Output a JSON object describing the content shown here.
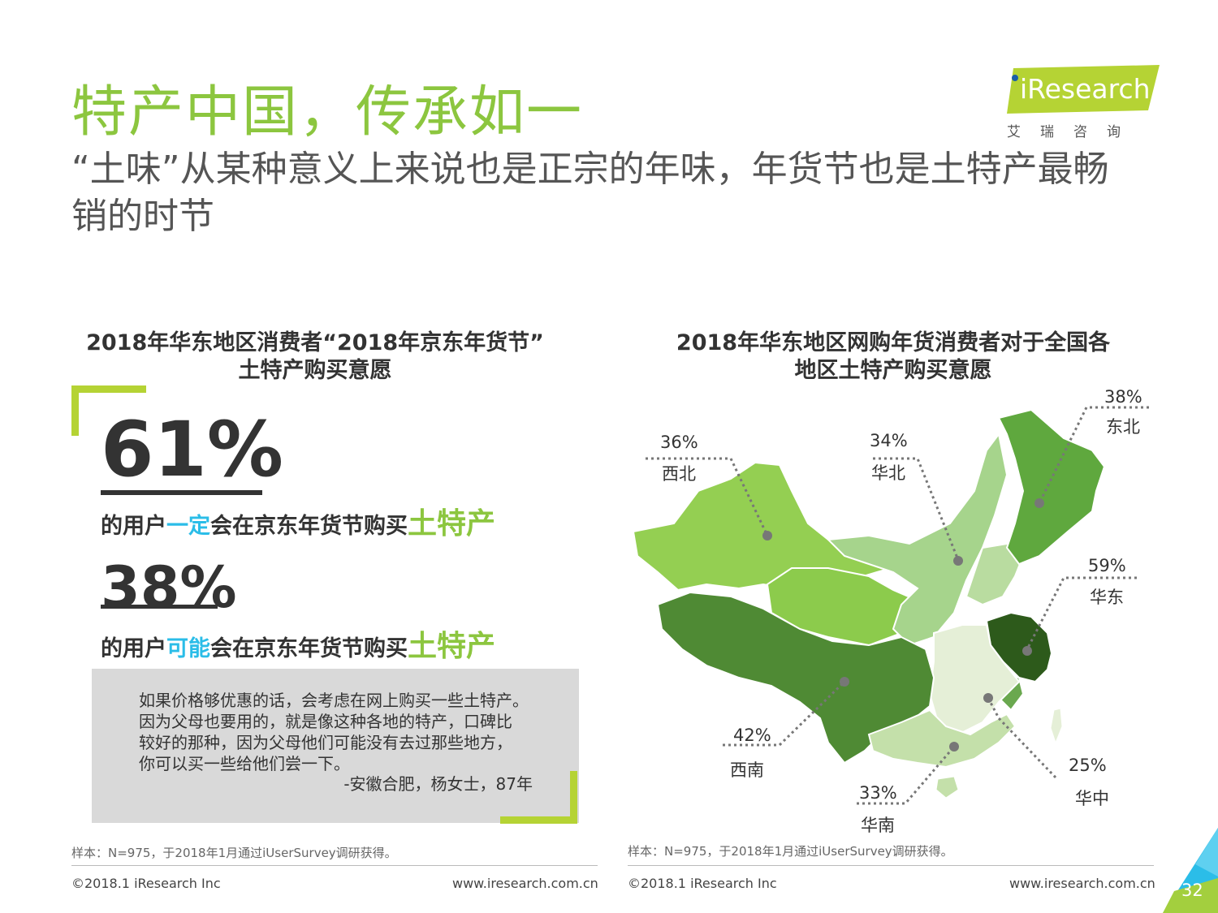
{
  "header": {
    "title": "特产中国，传承如一",
    "subtitle": "“土味”从某种意义上来说也是正宗的年味，年货节也是土特产最畅销的时节"
  },
  "logo": {
    "text": "iResearch",
    "subtext": "艾瑞咨询"
  },
  "left": {
    "title_line1": "2018年华东地区消费者“2018年京东年货节”",
    "title_line2": "土特产购买意愿",
    "stat1": {
      "value": "61%",
      "pre": "的用户",
      "emph": "一定",
      "mid": "会在京东年货节购买",
      "item": "土特产"
    },
    "stat2": {
      "value": "38%",
      "pre": "的用户",
      "emph": "可能",
      "mid": "会在京东年货节购买",
      "item": "土特产"
    },
    "quote_lines": [
      "如果价格够优惠的话，会考虑在网上购买一些土特产。",
      "因为父母也要用的，就是像这种各地的特产，口碑比",
      "较好的那种，因为父母他们可能没有去过那些地方，",
      "你可以买一些给他们尝一下。"
    ],
    "quote_source": "-安徽合肥，杨女士，87年",
    "note": "样本：N=975，于2018年1月通过iUserSurvey调研获得。"
  },
  "right": {
    "title_line1": "2018年华东地区网购年货消费者对于全国各",
    "title_line2": "地区土特产购买意愿",
    "note": "样本：N=975，于2018年1月通过iUserSurvey调研获得。"
  },
  "chart_data": {
    "type": "map",
    "regions": [
      {
        "name": "东北",
        "value": "38%",
        "color": "#5fa83e"
      },
      {
        "name": "西北",
        "value": "36%",
        "color": "#94cf52"
      },
      {
        "name": "华北",
        "value": "34%",
        "color": "#a6d48c"
      },
      {
        "name": "华东",
        "value": "59%",
        "color": "#2d5a1b"
      },
      {
        "name": "西南",
        "value": "42%",
        "color": "#4f8a34"
      },
      {
        "name": "华中",
        "value": "25%",
        "color": "#e5efd7"
      },
      {
        "name": "华南",
        "value": "33%",
        "color": "#c4e0aa"
      }
    ]
  },
  "footer": {
    "copyright": "©2018.1 iResearch Inc",
    "site": "www.iresearch.com.cn",
    "page": "32"
  }
}
